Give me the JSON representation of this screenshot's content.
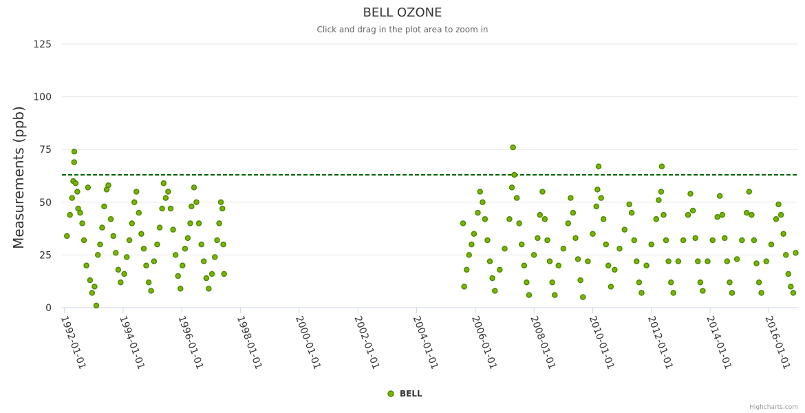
{
  "chart_data": {
    "type": "scatter",
    "title": "BELL OZONE",
    "subtitle": "Click and drag in the plot area to zoom in",
    "ylabel": "Measurements (ppb)",
    "xlabel": "",
    "ylim": [
      0,
      125
    ],
    "yticks": [
      0,
      25,
      50,
      75,
      100,
      125
    ],
    "xlim": [
      "1991-12-01",
      "2016-12-31"
    ],
    "xtick_labels": [
      "1992-01-01",
      "1994-01-01",
      "1996-01-01",
      "1998-01-01",
      "2000-01-01",
      "2002-01-01",
      "2004-01-01",
      "2006-01-01",
      "2008-01-01",
      "2010-01-01",
      "2012-01-01",
      "2014-01-01",
      "2016-01-01"
    ],
    "grid": true,
    "legend": "bottom-center",
    "series": [
      {
        "name": "BELL",
        "color": "#7cb500",
        "edge_color": "#4a8a00",
        "points": [
          [
            "1992-02-01",
            34
          ],
          [
            "1992-03-10",
            44
          ],
          [
            "1992-04-05",
            52
          ],
          [
            "1992-04-20",
            60
          ],
          [
            "1992-05-01",
            69
          ],
          [
            "1992-05-03",
            74
          ],
          [
            "1992-05-20",
            59
          ],
          [
            "1992-06-10",
            55
          ],
          [
            "1992-06-20",
            47
          ],
          [
            "1992-07-15",
            45
          ],
          [
            "1992-08-10",
            40
          ],
          [
            "1992-09-01",
            32
          ],
          [
            "1992-10-01",
            20
          ],
          [
            "1992-10-20",
            57
          ],
          [
            "1992-11-15",
            13
          ],
          [
            "1992-12-10",
            7
          ],
          [
            "1993-01-10",
            10
          ],
          [
            "1993-02-01",
            1
          ],
          [
            "1993-02-20",
            25
          ],
          [
            "1993-03-20",
            30
          ],
          [
            "1993-04-15",
            38
          ],
          [
            "1993-05-10",
            48
          ],
          [
            "1993-06-10",
            56
          ],
          [
            "1993-07-01",
            58
          ],
          [
            "1993-08-01",
            42
          ],
          [
            "1993-09-01",
            34
          ],
          [
            "1993-10-01",
            26
          ],
          [
            "1993-11-01",
            18
          ],
          [
            "1993-12-01",
            12
          ],
          [
            "1994-01-15",
            16
          ],
          [
            "1994-02-15",
            24
          ],
          [
            "1994-03-20",
            32
          ],
          [
            "1994-04-20",
            40
          ],
          [
            "1994-05-20",
            50
          ],
          [
            "1994-06-15",
            55
          ],
          [
            "1994-07-15",
            45
          ],
          [
            "1994-08-15",
            35
          ],
          [
            "1994-09-15",
            28
          ],
          [
            "1994-10-15",
            20
          ],
          [
            "1994-11-15",
            12
          ],
          [
            "1994-12-15",
            8
          ],
          [
            "1995-01-20",
            22
          ],
          [
            "1995-03-01",
            30
          ],
          [
            "1995-04-01",
            38
          ],
          [
            "1995-05-01",
            47
          ],
          [
            "1995-05-20",
            59
          ],
          [
            "1995-06-15",
            52
          ],
          [
            "1995-07-15",
            55
          ],
          [
            "1995-08-15",
            47
          ],
          [
            "1995-09-15",
            37
          ],
          [
            "1995-10-15",
            25
          ],
          [
            "1995-11-15",
            15
          ],
          [
            "1995-12-15",
            9
          ],
          [
            "1996-01-10",
            20
          ],
          [
            "1996-02-10",
            28
          ],
          [
            "1996-03-15",
            33
          ],
          [
            "1996-04-15",
            40
          ],
          [
            "1996-05-01",
            48
          ],
          [
            "1996-06-01",
            57
          ],
          [
            "1996-07-01",
            50
          ],
          [
            "1996-08-01",
            40
          ],
          [
            "1996-09-01",
            30
          ],
          [
            "1996-10-01",
            22
          ],
          [
            "1996-11-01",
            14
          ],
          [
            "1996-12-01",
            9
          ],
          [
            "1997-01-10",
            16
          ],
          [
            "1997-02-15",
            24
          ],
          [
            "1997-03-15",
            32
          ],
          [
            "1997-04-10",
            40
          ],
          [
            "1997-05-01",
            50
          ],
          [
            "1997-05-20",
            47
          ],
          [
            "1997-06-01",
            30
          ],
          [
            "1997-06-10",
            16
          ],
          [
            "2005-08-01",
            40
          ],
          [
            "2005-08-15",
            10
          ],
          [
            "2005-09-15",
            18
          ],
          [
            "2005-10-15",
            25
          ],
          [
            "2005-11-15",
            30
          ],
          [
            "2005-12-15",
            35
          ],
          [
            "2006-02-01",
            45
          ],
          [
            "2006-03-01",
            55
          ],
          [
            "2006-04-01",
            50
          ],
          [
            "2006-05-01",
            42
          ],
          [
            "2006-06-01",
            32
          ],
          [
            "2006-07-01",
            22
          ],
          [
            "2006-08-01",
            14
          ],
          [
            "2006-09-01",
            8
          ],
          [
            "2006-11-01",
            18
          ],
          [
            "2007-01-01",
            28
          ],
          [
            "2007-03-01",
            42
          ],
          [
            "2007-04-01",
            57
          ],
          [
            "2007-04-15",
            76
          ],
          [
            "2007-05-01",
            63
          ],
          [
            "2007-06-01",
            52
          ],
          [
            "2007-07-01",
            40
          ],
          [
            "2007-08-01",
            30
          ],
          [
            "2007-09-01",
            20
          ],
          [
            "2007-10-01",
            12
          ],
          [
            "2007-11-01",
            6
          ],
          [
            "2008-01-01",
            25
          ],
          [
            "2008-02-15",
            33
          ],
          [
            "2008-03-15",
            44
          ],
          [
            "2008-04-15",
            55
          ],
          [
            "2008-05-15",
            42
          ],
          [
            "2008-06-15",
            32
          ],
          [
            "2008-07-15",
            22
          ],
          [
            "2008-08-15",
            12
          ],
          [
            "2008-09-15",
            6
          ],
          [
            "2008-11-01",
            20
          ],
          [
            "2009-01-01",
            28
          ],
          [
            "2009-03-01",
            40
          ],
          [
            "2009-04-01",
            52
          ],
          [
            "2009-05-01",
            45
          ],
          [
            "2009-06-01",
            33
          ],
          [
            "2009-07-01",
            23
          ],
          [
            "2009-08-01",
            13
          ],
          [
            "2009-09-01",
            5
          ],
          [
            "2009-11-01",
            22
          ],
          [
            "2010-01-01",
            35
          ],
          [
            "2010-02-15",
            48
          ],
          [
            "2010-03-01",
            56
          ],
          [
            "2010-03-15",
            67
          ],
          [
            "2010-04-15",
            52
          ],
          [
            "2010-05-15",
            42
          ],
          [
            "2010-06-15",
            30
          ],
          [
            "2010-07-15",
            20
          ],
          [
            "2010-08-15",
            10
          ],
          [
            "2010-10-01",
            18
          ],
          [
            "2010-12-01",
            28
          ],
          [
            "2011-02-01",
            37
          ],
          [
            "2011-04-01",
            49
          ],
          [
            "2011-05-01",
            45
          ],
          [
            "2011-06-01",
            32
          ],
          [
            "2011-07-01",
            22
          ],
          [
            "2011-08-01",
            12
          ],
          [
            "2011-09-01",
            7
          ],
          [
            "2011-11-01",
            20
          ],
          [
            "2012-01-01",
            30
          ],
          [
            "2012-03-01",
            42
          ],
          [
            "2012-04-01",
            51
          ],
          [
            "2012-05-01",
            55
          ],
          [
            "2012-05-10",
            67
          ],
          [
            "2012-06-01",
            44
          ],
          [
            "2012-07-01",
            32
          ],
          [
            "2012-08-01",
            22
          ],
          [
            "2012-09-01",
            12
          ],
          [
            "2012-10-01",
            7
          ],
          [
            "2012-12-01",
            22
          ],
          [
            "2013-02-01",
            32
          ],
          [
            "2013-04-01",
            44
          ],
          [
            "2013-05-01",
            54
          ],
          [
            "2013-06-01",
            46
          ],
          [
            "2013-07-01",
            33
          ],
          [
            "2013-08-01",
            22
          ],
          [
            "2013-09-01",
            12
          ],
          [
            "2013-10-01",
            8
          ],
          [
            "2013-12-01",
            22
          ],
          [
            "2014-02-01",
            32
          ],
          [
            "2014-04-01",
            43
          ],
          [
            "2014-05-01",
            53
          ],
          [
            "2014-06-01",
            44
          ],
          [
            "2014-07-01",
            33
          ],
          [
            "2014-08-01",
            22
          ],
          [
            "2014-09-01",
            12
          ],
          [
            "2014-10-01",
            7
          ],
          [
            "2014-12-01",
            23
          ],
          [
            "2015-02-01",
            32
          ],
          [
            "2015-04-01",
            45
          ],
          [
            "2015-05-01",
            55
          ],
          [
            "2015-06-01",
            44
          ],
          [
            "2015-07-01",
            32
          ],
          [
            "2015-08-01",
            21
          ],
          [
            "2015-09-01",
            12
          ],
          [
            "2015-10-01",
            7
          ],
          [
            "2015-12-01",
            22
          ],
          [
            "2016-02-01",
            30
          ],
          [
            "2016-04-01",
            42
          ],
          [
            "2016-05-01",
            49
          ],
          [
            "2016-06-01",
            44
          ],
          [
            "2016-07-01",
            35
          ],
          [
            "2016-08-01",
            25
          ],
          [
            "2016-09-01",
            16
          ],
          [
            "2016-10-01",
            10
          ],
          [
            "2016-11-01",
            7
          ],
          [
            "2016-12-01",
            26
          ]
        ]
      }
    ],
    "reference_line": {
      "value": 63,
      "color": "#006400",
      "style": "dashed"
    }
  },
  "credits": "Highcharts.com"
}
